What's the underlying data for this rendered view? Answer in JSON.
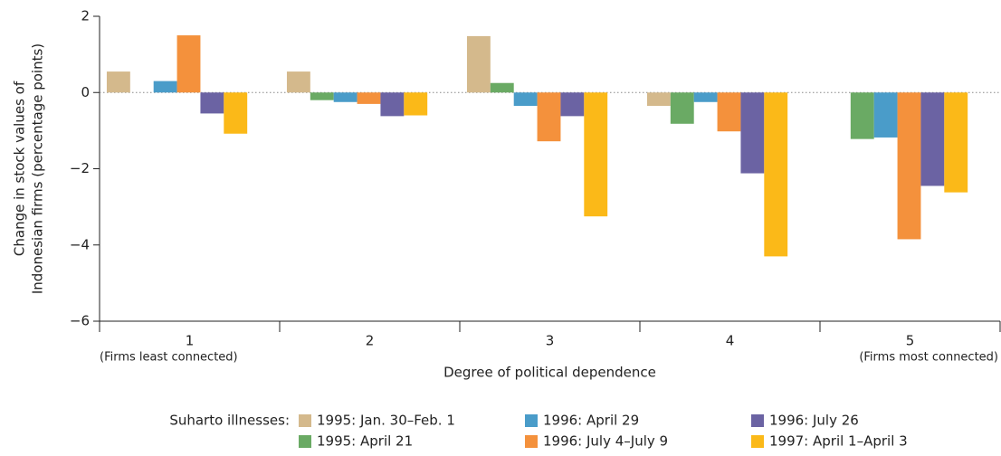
{
  "chart_data": {
    "type": "bar",
    "y_label": [
      "Change in stock values of",
      "Indonesian firms (percentage points)"
    ],
    "x_label": "Degree of political dependence",
    "categories": [
      "1",
      "2",
      "3",
      "4",
      "5"
    ],
    "category_sublabels": [
      "(Firms least connected)",
      null,
      null,
      null,
      "(Firms most connected)"
    ],
    "legend_title": "Suharto illnesses:",
    "series": [
      {
        "name": "1995: Jan. 30–Feb. 1",
        "color": "#d4b98c",
        "values": [
          0.55,
          0.55,
          1.48,
          -0.35,
          null
        ]
      },
      {
        "name": "1995: April 21",
        "color": "#6aaa64",
        "values": [
          null,
          -0.2,
          0.25,
          -0.82,
          -1.22
        ]
      },
      {
        "name": "1996: April 29",
        "color": "#4a9cc9",
        "values": [
          0.3,
          -0.25,
          -0.35,
          -0.25,
          -1.18
        ]
      },
      {
        "name": "1996: July 4–July 9",
        "color": "#f4913c",
        "values": [
          1.5,
          -0.3,
          -1.28,
          -1.02,
          -3.85
        ]
      },
      {
        "name": "1996: July 26",
        "color": "#6b63a3",
        "values": [
          -0.55,
          -0.62,
          -0.62,
          -2.12,
          -2.45
        ]
      },
      {
        "name": "1997: April 1–April 3",
        "color": "#fbb918",
        "values": [
          -1.08,
          -0.6,
          -3.25,
          -4.3,
          -2.62
        ]
      }
    ],
    "ylim": [
      -6,
      2
    ],
    "yticks": [
      {
        "value": -6,
        "label": "−6"
      },
      {
        "value": -4,
        "label": "−4"
      },
      {
        "value": -2,
        "label": "−2"
      },
      0,
      2
    ],
    "zero_line": true,
    "legend": "bottom"
  }
}
